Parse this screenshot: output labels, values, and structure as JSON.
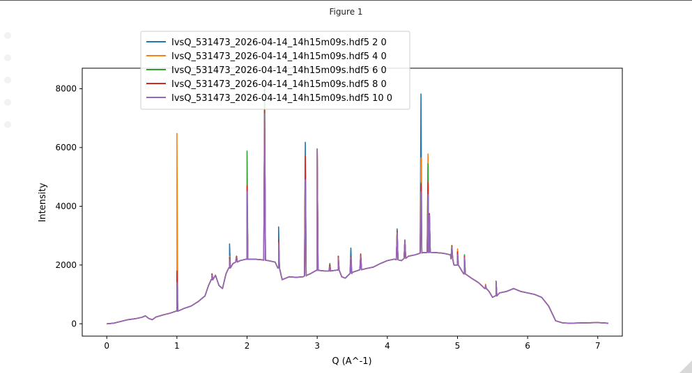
{
  "window": {
    "title": "Figure 1"
  },
  "chart_data": {
    "type": "line",
    "title": "",
    "xlabel": "Q (A^-1)",
    "ylabel": "Intensity",
    "xlim": [
      -0.35,
      7.35
    ],
    "ylim": [
      -420,
      8700
    ],
    "xticks": [
      0,
      1,
      2,
      3,
      4,
      5,
      6,
      7
    ],
    "xtick_labels": [
      "0",
      "1",
      "2",
      "3",
      "4",
      "5",
      "6",
      "7"
    ],
    "yticks": [
      0,
      2000,
      4000,
      6000,
      8000
    ],
    "ytick_labels": [
      "0",
      "2000",
      "4000",
      "6000",
      "8000"
    ],
    "grid": false,
    "legend_position": "top-left",
    "baseline": [
      [
        0,
        0
      ],
      [
        0.1,
        20
      ],
      [
        0.2,
        80
      ],
      [
        0.3,
        140
      ],
      [
        0.4,
        170
      ],
      [
        0.5,
        220
      ],
      [
        0.55,
        270
      ],
      [
        0.6,
        180
      ],
      [
        0.65,
        140
      ],
      [
        0.7,
        230
      ],
      [
        0.8,
        300
      ],
      [
        0.9,
        360
      ],
      [
        1.0,
        430
      ],
      [
        1.1,
        520
      ],
      [
        1.2,
        600
      ],
      [
        1.3,
        750
      ],
      [
        1.4,
        950
      ],
      [
        1.45,
        1300
      ],
      [
        1.5,
        1500
      ],
      [
        1.55,
        1650
      ],
      [
        1.6,
        1300
      ],
      [
        1.65,
        1200
      ],
      [
        1.7,
        1700
      ],
      [
        1.75,
        1900
      ],
      [
        1.8,
        2050
      ],
      [
        1.9,
        2150
      ],
      [
        2.0,
        2200
      ],
      [
        2.1,
        2200
      ],
      [
        2.2,
        2180
      ],
      [
        2.3,
        2150
      ],
      [
        2.4,
        2100
      ],
      [
        2.45,
        1900
      ],
      [
        2.5,
        1500
      ],
      [
        2.6,
        1600
      ],
      [
        2.7,
        1580
      ],
      [
        2.8,
        1600
      ],
      [
        2.85,
        1650
      ],
      [
        2.9,
        1700
      ],
      [
        3.0,
        1820
      ],
      [
        3.1,
        1800
      ],
      [
        3.2,
        1800
      ],
      [
        3.3,
        1830
      ],
      [
        3.35,
        1600
      ],
      [
        3.4,
        1550
      ],
      [
        3.5,
        1750
      ],
      [
        3.6,
        1830
      ],
      [
        3.7,
        1880
      ],
      [
        3.8,
        1930
      ],
      [
        3.9,
        2050
      ],
      [
        4.0,
        2150
      ],
      [
        4.1,
        2200
      ],
      [
        4.2,
        2150
      ],
      [
        4.3,
        2300
      ],
      [
        4.4,
        2350
      ],
      [
        4.5,
        2420
      ],
      [
        4.6,
        2430
      ],
      [
        4.7,
        2420
      ],
      [
        4.8,
        2400
      ],
      [
        4.9,
        2350
      ],
      [
        4.95,
        2000
      ],
      [
        5.0,
        2000
      ],
      [
        5.1,
        1700
      ],
      [
        5.2,
        1550
      ],
      [
        5.3,
        1400
      ],
      [
        5.4,
        1200
      ],
      [
        5.45,
        1100
      ],
      [
        5.5,
        900
      ],
      [
        5.55,
        950
      ],
      [
        5.6,
        1050
      ],
      [
        5.7,
        1100
      ],
      [
        5.75,
        1150
      ],
      [
        5.8,
        1200
      ],
      [
        5.9,
        1100
      ],
      [
        6.0,
        1050
      ],
      [
        6.1,
        1000
      ],
      [
        6.2,
        900
      ],
      [
        6.3,
        600
      ],
      [
        6.4,
        100
      ],
      [
        6.5,
        30
      ],
      [
        6.6,
        20
      ],
      [
        7.0,
        40
      ],
      [
        7.15,
        20
      ]
    ],
    "series": [
      {
        "name": "IvsQ_531473_2026-04-14_14h15m09s.hdf5 2 0",
        "color": "#1f77b4",
        "peaks": [
          [
            1.0,
            1500
          ],
          [
            1.5,
            1700
          ],
          [
            1.75,
            2720
          ],
          [
            1.85,
            2300
          ],
          [
            2.0,
            4300
          ],
          [
            2.25,
            7300
          ],
          [
            2.45,
            3300
          ],
          [
            2.83,
            6180
          ],
          [
            3.0,
            5950
          ],
          [
            3.3,
            2300
          ],
          [
            3.48,
            2580
          ],
          [
            3.62,
            2300
          ],
          [
            4.14,
            3230
          ],
          [
            4.25,
            2850
          ],
          [
            4.48,
            7820
          ],
          [
            4.58,
            4800
          ],
          [
            4.6,
            3750
          ],
          [
            4.92,
            2600
          ],
          [
            5.0,
            2450
          ],
          [
            5.1,
            2300
          ],
          [
            5.4,
            1300
          ],
          [
            5.55,
            1450
          ]
        ]
      },
      {
        "name": "IvsQ_531473_2026-04-14_14h15m09s.hdf5 4 0",
        "color": "#ff7f0e",
        "peaks": [
          [
            1.0,
            6480
          ],
          [
            1.5,
            1700
          ],
          [
            1.75,
            2300
          ],
          [
            1.85,
            2300
          ],
          [
            2.0,
            4400
          ],
          [
            2.25,
            7300
          ],
          [
            2.45,
            2800
          ],
          [
            2.83,
            5600
          ],
          [
            3.0,
            5950
          ],
          [
            3.18,
            2000
          ],
          [
            3.3,
            2300
          ],
          [
            3.48,
            2300
          ],
          [
            3.62,
            2350
          ],
          [
            4.14,
            3150
          ],
          [
            4.25,
            2850
          ],
          [
            4.48,
            5650
          ],
          [
            4.58,
            5780
          ],
          [
            4.6,
            3750
          ],
          [
            4.92,
            2650
          ],
          [
            5.0,
            2550
          ],
          [
            5.1,
            2300
          ],
          [
            5.4,
            1350
          ],
          [
            5.55,
            1450
          ]
        ]
      },
      {
        "name": "IvsQ_531473_2026-04-14_14h15m09s.hdf5 6 0",
        "color": "#2ca02c",
        "peaks": [
          [
            1.0,
            1650
          ],
          [
            1.5,
            1700
          ],
          [
            1.75,
            2250
          ],
          [
            1.85,
            2300
          ],
          [
            2.0,
            5880
          ],
          [
            2.25,
            8050
          ],
          [
            2.45,
            2800
          ],
          [
            2.83,
            5600
          ],
          [
            3.0,
            5950
          ],
          [
            3.18,
            2050
          ],
          [
            3.3,
            2300
          ],
          [
            3.48,
            2300
          ],
          [
            3.62,
            2350
          ],
          [
            4.14,
            3150
          ],
          [
            4.25,
            2850
          ],
          [
            4.48,
            4800
          ],
          [
            4.58,
            5450
          ],
          [
            4.6,
            3750
          ],
          [
            4.92,
            2670
          ],
          [
            5.0,
            2400
          ],
          [
            5.1,
            2350
          ],
          [
            5.4,
            1300
          ],
          [
            5.55,
            1450
          ]
        ]
      },
      {
        "name": "IvsQ_531473_2026-04-14_14h15m09s.hdf5 8 0",
        "color": "#d62728",
        "peaks": [
          [
            1.0,
            1800
          ],
          [
            1.5,
            1700
          ],
          [
            1.75,
            2250
          ],
          [
            1.85,
            2300
          ],
          [
            2.0,
            4700
          ],
          [
            2.25,
            7350
          ],
          [
            2.45,
            2850
          ],
          [
            2.83,
            5700
          ],
          [
            3.0,
            5950
          ],
          [
            3.18,
            2000
          ],
          [
            3.3,
            2300
          ],
          [
            3.48,
            2300
          ],
          [
            3.62,
            2380
          ],
          [
            4.14,
            3150
          ],
          [
            4.25,
            2850
          ],
          [
            4.48,
            4750
          ],
          [
            4.58,
            4800
          ],
          [
            4.6,
            3750
          ],
          [
            4.92,
            2650
          ],
          [
            5.0,
            2450
          ],
          [
            5.1,
            2300
          ],
          [
            5.4,
            1300
          ],
          [
            5.55,
            1450
          ]
        ]
      },
      {
        "name": "IvsQ_531473_2026-04-14_14h15m09s.hdf5 10 0",
        "color": "#9467bd",
        "peaks": [
          [
            1.0,
            1400
          ],
          [
            1.5,
            1650
          ],
          [
            1.75,
            2200
          ],
          [
            1.85,
            2250
          ],
          [
            2.0,
            4500
          ],
          [
            2.25,
            7150
          ],
          [
            2.45,
            2750
          ],
          [
            2.83,
            4900
          ],
          [
            3.0,
            5950
          ],
          [
            3.18,
            1950
          ],
          [
            3.3,
            2250
          ],
          [
            3.48,
            2250
          ],
          [
            3.62,
            2300
          ],
          [
            4.14,
            3100
          ],
          [
            4.25,
            2850
          ],
          [
            4.48,
            4500
          ],
          [
            4.58,
            4400
          ],
          [
            4.6,
            3700
          ],
          [
            4.92,
            2600
          ],
          [
            5.0,
            2350
          ],
          [
            5.1,
            2250
          ],
          [
            5.4,
            1300
          ],
          [
            5.55,
            1450
          ]
        ]
      }
    ]
  }
}
